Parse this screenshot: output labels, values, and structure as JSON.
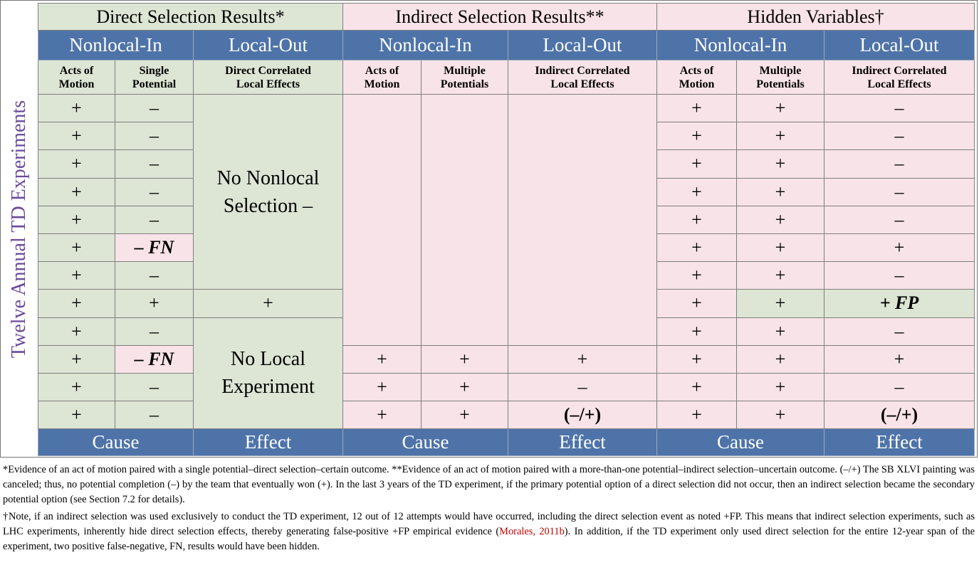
{
  "side_label": "Twelve Annual TD Experiments",
  "groups": [
    {
      "title": "Direct Selection Results*",
      "sub_in": "Nonlocal-In",
      "sub_out": "Local-Out",
      "col1": [
        "Acts of",
        "Motion"
      ],
      "col2": [
        "Single",
        "Potential"
      ],
      "col3": [
        "Direct Correlated",
        "Local Effects"
      ]
    },
    {
      "title": "Indirect Selection Results**",
      "sub_in": "Nonlocal-In",
      "sub_out": "Local-Out",
      "col1": [
        "Acts of",
        "Motion"
      ],
      "col2": [
        "Multiple",
        "Potentials"
      ],
      "col3": [
        "Indirect Correlated",
        "Local Effects"
      ]
    },
    {
      "title": "Hidden Variables†",
      "sub_in": "Nonlocal-In",
      "sub_out": "Local-Out",
      "col1": [
        "Acts of",
        "Motion"
      ],
      "col2": [
        "Multiple",
        "Potentials"
      ],
      "col3": [
        "Indirect Correlated",
        "Local Effects"
      ]
    }
  ],
  "direct": {
    "acts": [
      "+",
      "+",
      "+",
      "+",
      "+",
      "+",
      "+",
      "+",
      "+",
      "+",
      "+",
      "+"
    ],
    "potential": [
      "–",
      "–",
      "–",
      "–",
      "–",
      "– FN",
      "–",
      "+",
      "–",
      "– FN",
      "–",
      "–"
    ],
    "effects_top": [
      "No Nonlocal",
      "Selection –"
    ],
    "effects_row8": "+",
    "effects_bottom": [
      "No Local",
      "Experiment"
    ]
  },
  "indirect": {
    "acts": [
      "+",
      "+",
      "+"
    ],
    "potentials": [
      "+",
      "+",
      "+"
    ],
    "effects": [
      "+",
      "–",
      "(–/+)"
    ]
  },
  "hidden": {
    "acts": [
      "+",
      "+",
      "+",
      "+",
      "+",
      "+",
      "+",
      "+",
      "+",
      "+",
      "+",
      "+"
    ],
    "potentials": [
      "+",
      "+",
      "+",
      "+",
      "+",
      "+",
      "+",
      "+",
      "+",
      "+",
      "+",
      "+"
    ],
    "effects": [
      "–",
      "–",
      "–",
      "–",
      "–",
      "+",
      "–",
      "+ FP",
      "–",
      "+",
      "–",
      "(–/+)"
    ]
  },
  "footer": [
    "Cause",
    "Effect",
    "Cause",
    "Effect",
    "Cause",
    "Effect"
  ],
  "notes": {
    "n1": "*Evidence of an act of motion paired with a single potential–direct selection–certain outcome. **Evidence of an act of motion paired with a more-than-one potential–indirect selection–uncertain outcome. (–/+) The SB XLVI painting was canceled; thus, no potential completion (–) by the team that eventually won (+). In the last 3 years of the TD experiment, if the primary potential option of a direct selection did not occur, then an indirect selection became the secondary potential option (see Section 7.2 for details).",
    "n2_a": "†Note, if an indirect selection was used exclusively to conduct the TD experiment, 12 out of 12 attempts would have occurred, including the direct selection event as noted +FP. This means that indirect selection experiments, such as LHC experiments, inherently hide direct selection effects, thereby generating false-positive +FP empirical evidence (",
    "n2_cite": "Morales, 2011b",
    "n2_b": "). In addition, if the TD experiment only used direct selection for the entire 12-year span of the experiment, two positive false-negative, FN, results would have been hidden."
  },
  "colors": {
    "green": "#dde5d4",
    "pink": "#f8e3e8",
    "blue": "#4e73a8",
    "side_label": "#6a4a9c",
    "citation": "#c00000"
  }
}
